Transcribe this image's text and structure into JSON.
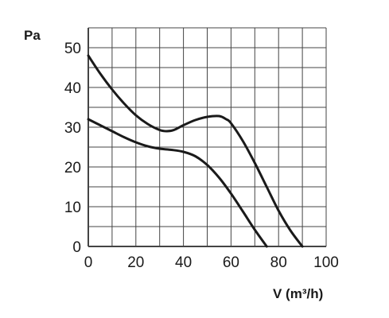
{
  "chart_data": {
    "type": "line",
    "title": "",
    "xlabel": "V (m³/h)",
    "ylabel": "Pa",
    "xlim": [
      0,
      100
    ],
    "ylim": [
      0,
      55
    ],
    "x_ticks": [
      0,
      20,
      40,
      60,
      80,
      100
    ],
    "y_ticks": [
      0,
      10,
      20,
      30,
      40,
      50
    ],
    "grid": true,
    "series": [
      {
        "x": [
          0,
          5,
          10,
          15,
          20,
          25,
          30,
          33,
          36,
          40,
          45,
          50,
          55,
          58,
          60,
          65,
          70,
          75,
          80,
          85,
          90
        ],
        "y": [
          48,
          43.5,
          39.5,
          36,
          33,
          30.8,
          29.3,
          29.0,
          29.3,
          30.5,
          31.8,
          32.6,
          32.8,
          32.0,
          31.0,
          26.5,
          21.0,
          15.0,
          9.0,
          4.0,
          0
        ]
      },
      {
        "x": [
          0,
          5,
          10,
          15,
          20,
          25,
          30,
          35,
          40,
          45,
          50,
          55,
          60,
          65,
          70,
          75
        ],
        "y": [
          32,
          30.5,
          29,
          27.5,
          26.2,
          25.2,
          24.6,
          24.3,
          23.8,
          22.7,
          20.5,
          17.3,
          13.3,
          8.8,
          4.2,
          0
        ]
      }
    ],
    "line_color": "#1a1a1a",
    "grid_color": "#444444"
  }
}
